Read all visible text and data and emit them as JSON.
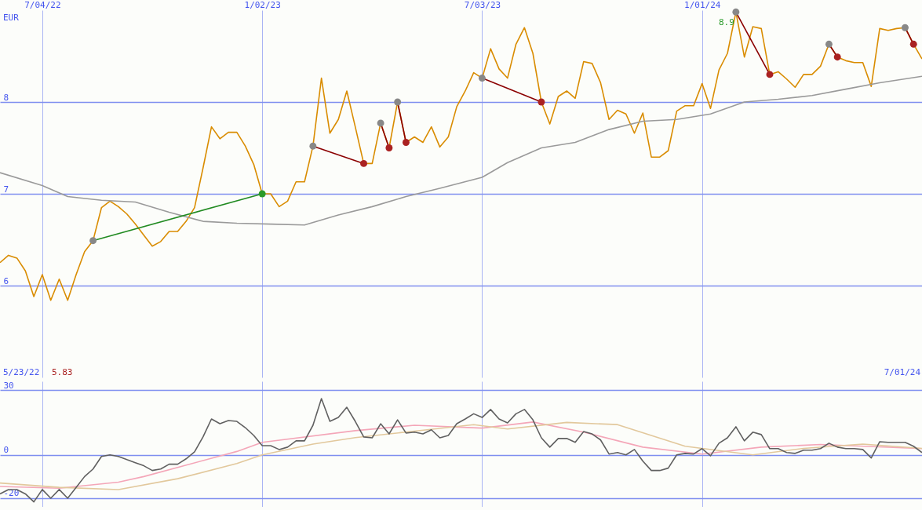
{
  "chart_data": [
    {
      "type": "line",
      "ylabel": "EUR",
      "x": [
        "2022-05-30",
        "2022-06-06",
        "2022-06-13",
        "2022-06-20",
        "2022-06-27",
        "2022-07-04",
        "2022-07-11",
        "2022-07-18",
        "2022-07-25",
        "2022-08-01",
        "2022-08-08",
        "2022-08-15",
        "2022-08-22",
        "2022-08-29",
        "2022-09-05",
        "2022-09-12",
        "2022-09-19",
        "2022-09-26",
        "2022-10-03",
        "2022-10-10",
        "2022-10-17",
        "2022-10-24",
        "2022-10-31",
        "2022-11-07",
        "2022-11-14",
        "2022-11-21",
        "2022-11-28",
        "2022-12-05",
        "2022-12-12",
        "2022-12-19",
        "2022-12-26",
        "2023-01-02",
        "2023-01-09",
        "2023-01-16",
        "2023-01-23",
        "2023-01-30",
        "2023-02-06",
        "2023-02-13",
        "2023-02-20",
        "2023-02-27",
        "2023-03-06",
        "2023-03-13",
        "2023-03-20",
        "2023-03-27",
        "2023-04-03",
        "2023-04-10",
        "2023-04-17",
        "2023-04-24",
        "2023-05-01",
        "2023-05-08",
        "2023-05-15",
        "2023-05-22",
        "2023-05-29",
        "2023-06-05",
        "2023-06-12",
        "2023-06-19",
        "2023-06-26",
        "2023-07-03",
        "2023-07-10",
        "2023-07-17",
        "2023-07-24",
        "2023-07-31",
        "2023-08-07",
        "2023-08-14",
        "2023-08-21",
        "2023-08-28",
        "2023-09-04",
        "2023-09-11",
        "2023-09-18",
        "2023-09-25",
        "2023-10-02",
        "2023-10-09",
        "2023-10-16",
        "2023-10-23",
        "2023-10-30",
        "2023-11-06",
        "2023-11-13",
        "2023-11-20",
        "2023-11-27",
        "2023-12-04",
        "2023-12-11",
        "2023-12-18",
        "2023-12-25",
        "2024-01-01",
        "2024-01-08",
        "2024-01-15",
        "2024-01-22",
        "2024-01-29",
        "2024-02-05",
        "2024-02-12",
        "2024-02-19",
        "2024-02-26",
        "2024-03-04",
        "2024-03-11",
        "2024-03-18",
        "2024-03-25",
        "2024-04-01",
        "2024-04-08",
        "2024-04-15",
        "2024-04-22",
        "2024-04-29",
        "2024-05-06",
        "2024-05-13",
        "2024-05-20",
        "2024-05-27",
        "2024-06-03",
        "2024-06-10",
        "2024-06-17",
        "2024-06-24",
        "2024-07-01"
      ],
      "series": [
        {
          "color": "#d98c00",
          "values": [
            6.25,
            6.33,
            6.3,
            6.16,
            5.88,
            6.12,
            5.84,
            6.07,
            5.84,
            6.12,
            6.37,
            6.49,
            6.85,
            6.92,
            6.86,
            6.78,
            6.67,
            6.55,
            6.43,
            6.48,
            6.59,
            6.59,
            6.7,
            6.85,
            7.28,
            7.73,
            7.6,
            7.67,
            7.67,
            7.52,
            7.32,
            7.0,
            7.0,
            6.86,
            6.92,
            7.13,
            7.13,
            7.52,
            8.26,
            7.66,
            7.81,
            8.12,
            7.73,
            7.33,
            7.33,
            7.77,
            7.5,
            8.0,
            7.56,
            7.62,
            7.56,
            7.73,
            7.51,
            7.62,
            7.95,
            8.12,
            8.32,
            8.26,
            8.58,
            8.36,
            8.26,
            8.63,
            8.81,
            8.53,
            8.0,
            7.76,
            8.06,
            8.12,
            8.04,
            8.44,
            8.42,
            8.21,
            7.81,
            7.91,
            7.87,
            7.66,
            7.88,
            7.4,
            7.4,
            7.47,
            7.9,
            7.96,
            7.96,
            8.2,
            7.93,
            8.35,
            8.53,
            8.98,
            8.49,
            8.82,
            8.8,
            8.3,
            8.33,
            8.25,
            8.16,
            8.3,
            8.3,
            8.39,
            8.63,
            8.49,
            8.45,
            8.43,
            8.43,
            8.17,
            8.8,
            8.78,
            8.8,
            8.81,
            8.63,
            8.47
          ]
        },
        {
          "color": "#9a9a9a",
          "x": [
            "2022-05-30",
            "2022-07-04",
            "2022-07-25",
            "2022-08-22",
            "2022-09-19",
            "2022-10-17",
            "2022-11-14",
            "2022-12-12",
            "2023-01-09",
            "2023-02-06",
            "2023-03-06",
            "2023-04-03",
            "2023-05-01",
            "2023-05-29",
            "2023-07-03",
            "2023-07-24",
            "2023-08-21",
            "2023-09-18",
            "2023-10-16",
            "2023-11-13",
            "2023-12-11",
            "2024-01-08",
            "2024-02-05",
            "2024-03-04",
            "2024-04-01",
            "2024-04-29",
            "2024-05-27",
            "2024-07-01"
          ],
          "values": [
            7.23,
            7.09,
            6.97,
            6.93,
            6.91,
            6.8,
            6.7,
            6.68,
            6.67,
            6.66,
            6.77,
            6.86,
            6.97,
            7.06,
            7.18,
            7.34,
            7.5,
            7.56,
            7.7,
            7.79,
            7.81,
            7.87,
            8.0,
            8.03,
            8.07,
            8.14,
            8.21,
            8.28
          ]
        },
        {
          "color": "#228b22",
          "x": [
            "2022-08-15",
            "2023-01-02"
          ],
          "values": [
            6.49,
            7.0
          ]
        },
        {
          "color": "#8b0000",
          "x": [
            "2023-02-13",
            "2023-03-27"
          ],
          "values": [
            7.52,
            7.33
          ]
        },
        {
          "color": "#8b0000",
          "x": [
            "2023-04-10",
            "2023-04-17"
          ],
          "values": [
            7.77,
            7.5
          ]
        },
        {
          "color": "#8b0000",
          "x": [
            "2023-04-24",
            "2023-05-01"
          ],
          "values": [
            8.0,
            7.56
          ]
        },
        {
          "color": "#8b0000",
          "x": [
            "2023-07-03",
            "2023-08-21"
          ],
          "values": [
            8.26,
            8.0
          ]
        },
        {
          "color": "#8b0000",
          "x": [
            "2024-01-29",
            "2024-02-26"
          ],
          "values": [
            8.98,
            8.3
          ]
        },
        {
          "color": "#8b0000",
          "x": [
            "2024-04-15",
            "2024-04-22"
          ],
          "values": [
            8.63,
            8.49
          ]
        },
        {
          "color": "#8b0000",
          "x": [
            "2024-06-17",
            "2024-06-24"
          ],
          "values": [
            8.81,
            8.63
          ]
        },
        {
          "type": "scatter",
          "marker": "circle",
          "x": [
            "2022-08-15",
            "2023-01-02",
            "2023-02-13",
            "2023-03-27",
            "2023-04-10",
            "2023-04-17",
            "2023-04-24",
            "2023-05-01",
            "2023-07-03",
            "2023-08-21",
            "2024-01-29",
            "2024-02-26",
            "2024-04-15",
            "2024-04-22",
            "2024-06-17",
            "2024-06-24"
          ],
          "values": [
            6.49,
            7.0,
            7.52,
            7.33,
            7.77,
            7.5,
            8.0,
            7.56,
            8.26,
            8.0,
            8.98,
            8.3,
            8.63,
            8.49,
            8.81,
            8.63
          ],
          "colors": [
            "#888888",
            "#2a9a2a",
            "#888888",
            "#aa2222",
            "#888888",
            "#aa2222",
            "#888888",
            "#aa2222",
            "#888888",
            "#aa2222",
            "#888888",
            "#aa2222",
            "#888888",
            "#aa2222",
            "#888888",
            "#aa2222"
          ]
        }
      ],
      "xlim": [
        "2022-05-30",
        "2024-07-01"
      ],
      "xticks": [
        {
          "value": "2022-07-04",
          "label": "7/04/22"
        },
        {
          "value": "2023-01-02",
          "label": "1/02/23"
        },
        {
          "value": "2023-07-03",
          "label": "7/03/23"
        },
        {
          "value": "2024-01-01",
          "label": "1/01/24"
        }
      ],
      "ylim": [
        5,
        9
      ],
      "yticks": [
        6,
        7,
        8
      ],
      "grid": true,
      "annotations": [
        "5/23/22",
        "5.83",
        "7/01/24",
        {
          "text": "8.9",
          "x": "2024-01-29",
          "y": 8.98
        }
      ]
    },
    {
      "type": "line",
      "x": [
        "2022-05-30",
        "2022-06-06",
        "2022-06-13",
        "2022-06-20",
        "2022-06-27",
        "2022-07-04",
        "2022-07-11",
        "2022-07-18",
        "2022-07-25",
        "2022-08-01",
        "2022-08-08",
        "2022-08-15",
        "2022-08-22",
        "2022-08-29",
        "2022-09-05",
        "2022-09-12",
        "2022-09-19",
        "2022-09-26",
        "2022-10-03",
        "2022-10-10",
        "2022-10-17",
        "2022-10-24",
        "2022-10-31",
        "2022-11-07",
        "2022-11-14",
        "2022-11-21",
        "2022-11-28",
        "2022-12-05",
        "2022-12-12",
        "2022-12-19",
        "2022-12-26",
        "2023-01-02",
        "2023-01-09",
        "2023-01-16",
        "2023-01-23",
        "2023-01-30",
        "2023-02-06",
        "2023-02-13",
        "2023-02-20",
        "2023-02-27",
        "2023-03-06",
        "2023-03-13",
        "2023-03-20",
        "2023-03-27",
        "2023-04-03",
        "2023-04-10",
        "2023-04-17",
        "2023-04-24",
        "2023-05-01",
        "2023-05-08",
        "2023-05-15",
        "2023-05-22",
        "2023-05-29",
        "2023-06-05",
        "2023-06-12",
        "2023-06-19",
        "2023-06-26",
        "2023-07-03",
        "2023-07-10",
        "2023-07-17",
        "2023-07-24",
        "2023-07-31",
        "2023-08-07",
        "2023-08-14",
        "2023-08-21",
        "2023-08-28",
        "2023-09-04",
        "2023-09-11",
        "2023-09-18",
        "2023-09-25",
        "2023-10-02",
        "2023-10-09",
        "2023-10-16",
        "2023-10-23",
        "2023-10-30",
        "2023-11-06",
        "2023-11-13",
        "2023-11-20",
        "2023-11-27",
        "2023-12-04",
        "2023-12-11",
        "2023-12-18",
        "2023-12-25",
        "2024-01-01",
        "2024-01-08",
        "2024-01-15",
        "2024-01-22",
        "2024-01-29",
        "2024-02-05",
        "2024-02-12",
        "2024-02-19",
        "2024-02-26",
        "2024-03-04",
        "2024-03-11",
        "2024-03-18",
        "2024-03-25",
        "2024-04-01",
        "2024-04-08",
        "2024-04-15",
        "2024-04-22",
        "2024-04-29",
        "2024-05-06",
        "2024-05-13",
        "2024-05-20",
        "2024-05-27",
        "2024-06-03",
        "2024-06-10",
        "2024-06-17",
        "2024-06-24",
        "2024-07-01"
      ],
      "series": [
        {
          "color": "#f4a6b8",
          "x": [
            "2022-05-30",
            "2022-07-18",
            "2022-09-05",
            "2022-09-26",
            "2022-12-12",
            "2023-01-02",
            "2023-03-20",
            "2023-05-08",
            "2023-07-03",
            "2023-08-14",
            "2023-09-25",
            "2023-11-13",
            "2024-01-01",
            "2024-02-19",
            "2024-04-08",
            "2024-07-01"
          ],
          "values": [
            -14.6,
            -15.4,
            -12.6,
            -10,
            1.6,
            5.8,
            11.2,
            13.7,
            12.4,
            15.2,
            10.5,
            3.6,
            0.4,
            3.6,
            4.8,
            2.9
          ]
        },
        {
          "color": "#e2c89c",
          "x": [
            "2022-05-30",
            "2022-07-18",
            "2022-09-05",
            "2022-10-24",
            "2022-12-12",
            "2023-01-02",
            "2023-02-13",
            "2023-03-20",
            "2023-05-08",
            "2023-06-26",
            "2023-07-24",
            "2023-09-11",
            "2023-10-23",
            "2023-12-18",
            "2024-02-12",
            "2024-03-25",
            "2024-05-13",
            "2024-07-01"
          ],
          "values": [
            -13,
            -15,
            -16,
            -11,
            -4,
            0,
            5,
            8,
            11,
            14,
            12,
            15,
            14,
            4,
            0,
            3,
            5,
            3
          ]
        },
        {
          "color": "#606060",
          "values": [
            -18,
            -16,
            -16,
            -18,
            -21.7,
            -16,
            -20,
            -16,
            -20,
            -15,
            -10,
            -6.5,
            -0.7,
            0,
            -0.7,
            -2.2,
            -3.6,
            -5,
            -7.2,
            -6.5,
            -4.3,
            -4.3,
            -1.8,
            1.4,
            8.3,
            16.6,
            14.4,
            15.9,
            15.5,
            12.6,
            9,
            4.3,
            4.3,
            2.5,
            3.6,
            6.5,
            6.5,
            13.7,
            26,
            15.5,
            17.3,
            22,
            15.5,
            8.3,
            7.9,
            14.4,
            9.7,
            16.2,
            10.1,
            10.5,
            9.7,
            11.6,
            7.9,
            9,
            14.4,
            16.6,
            19,
            17.3,
            21,
            16.6,
            14.8,
            19,
            21,
            16.2,
            7.9,
            3.6,
            7.6,
            7.6,
            5.8,
            10.8,
            9.7,
            6.9,
            0.4,
            1.1,
            0,
            2.5,
            -2.9,
            -7.2,
            -7.2,
            -6.1,
            0,
            0.7,
            0.4,
            2.9,
            -0.4,
            5.4,
            7.9,
            13,
            6.5,
            10.5,
            9.4,
            2.9,
            2.9,
            1.1,
            0.7,
            2.2,
            2.2,
            2.9,
            5.4,
            3.6,
            2.9,
            2.9,
            2.5,
            -1.4,
            6.1,
            5.8,
            5.8,
            5.8,
            4,
            1.1
          ]
        }
      ],
      "xlim": [
        "2022-05-30",
        "2024-07-01"
      ],
      "xticks": [
        {
          "value": "2022-07-04",
          "label": null
        },
        {
          "value": "2023-01-02",
          "label": null
        },
        {
          "value": "2023-07-03",
          "label": null
        },
        {
          "value": "2024-01-01",
          "label": null
        }
      ],
      "ylim": [
        -24,
        34
      ],
      "yticks": [
        -20,
        0,
        30
      ],
      "grid": true,
      "tick_labels": "y"
    }
  ]
}
